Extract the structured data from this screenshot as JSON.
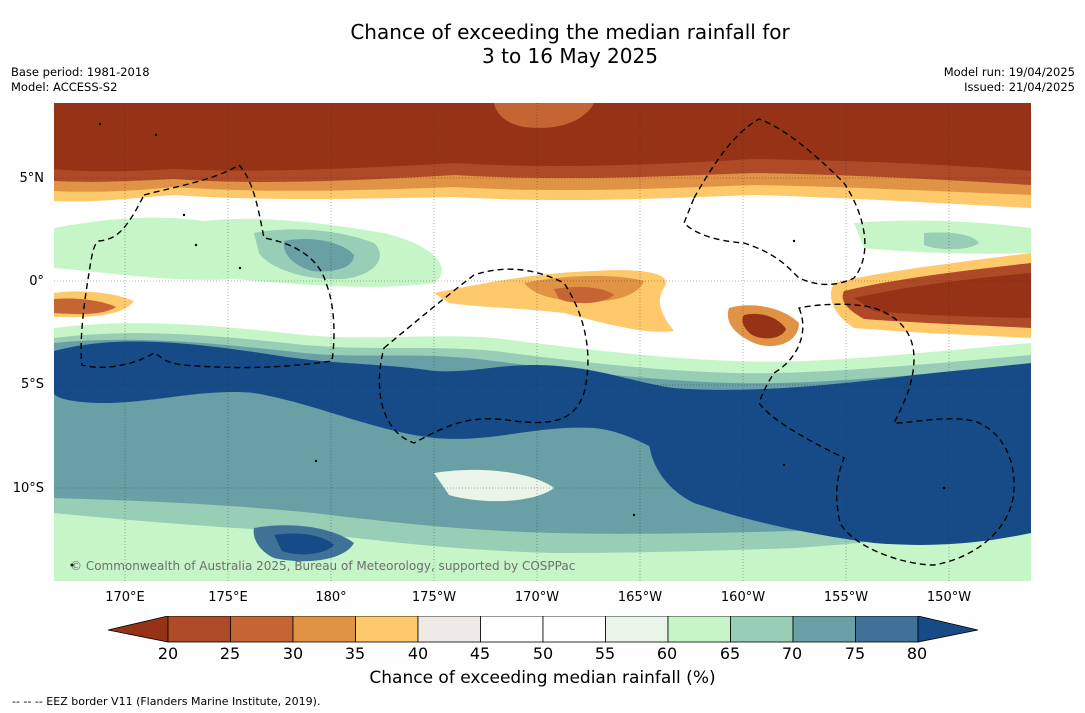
{
  "header": {
    "title_line1": "Chance of exceeding the median rainfall for",
    "title_line2": "3 to 16 May 2025",
    "base_period": "Base period: 1981-2018",
    "model": "Model: ACCESS-S2",
    "model_run": "Model run: 19/04/2025",
    "issued": "Issued: 21/04/2025"
  },
  "map": {
    "lat_labels": [
      "5°N",
      "0°",
      "5°S",
      "10°S"
    ],
    "lon_labels": [
      "170°E",
      "175°E",
      "180°",
      "175°W",
      "170°W",
      "165°W",
      "160°W",
      "155°W",
      "150°W"
    ],
    "copyright": "© Commonwealth of Australia 2025, Bureau of Meteorology, supported by COSPPac",
    "ocean_color": "#ffffff"
  },
  "colorbar": {
    "label": "Chance of exceeding median rainfall (%)",
    "ticks": [
      "20",
      "25",
      "30",
      "35",
      "40",
      "45",
      "50",
      "55",
      "60",
      "65",
      "70",
      "75",
      "80"
    ],
    "colors": [
      "#963317",
      "#ae4a28",
      "#c56534",
      "#e09245",
      "#fec96b",
      "#eeebe6",
      "#ffffff",
      "#ffffff",
      "#eaf4e8",
      "#c6f5c8",
      "#98cdb6",
      "#68a0a6",
      "#3f7296",
      "#174b88"
    ]
  },
  "footer": {
    "legend_text": "--  --  -- EEZ border V11 (Flanders Marine Institute, 2019)."
  }
}
